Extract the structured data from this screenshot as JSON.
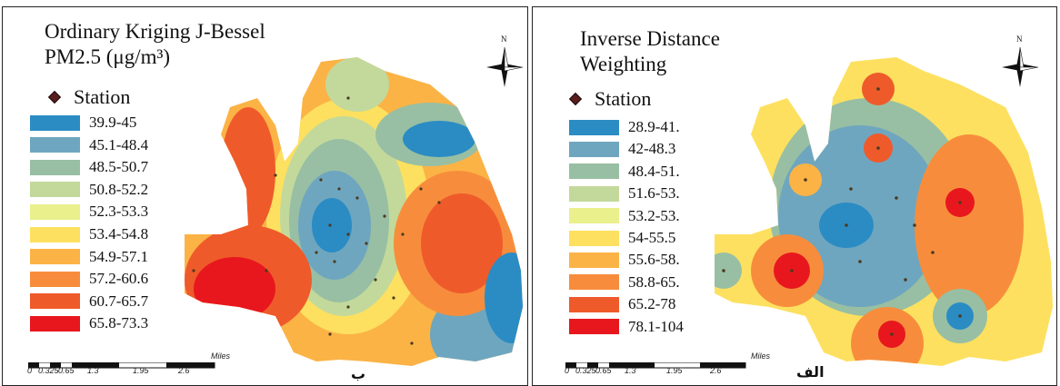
{
  "panels": {
    "left": {
      "title_line1": "Ordinary Kriging J-Bessel",
      "title_line2": "PM2.5 (μg/m³)",
      "station_label": "Station",
      "legend": [
        {
          "label": "39.9-45",
          "color": "#2b8cc4"
        },
        {
          "label": "45.1-48.4",
          "color": "#6fa6bf"
        },
        {
          "label": "48.5-50.7",
          "color": "#98bfa3"
        },
        {
          "label": "50.8-52.2",
          "color": "#c2d99b"
        },
        {
          "label": "52.3-53.3",
          "color": "#eaf08c"
        },
        {
          "label": "53.4-54.8",
          "color": "#fde05f"
        },
        {
          "label": "54.9-57.1",
          "color": "#fbb346"
        },
        {
          "label": "57.2-60.6",
          "color": "#f78d3c"
        },
        {
          "label": "60.7-65.7",
          "color": "#ef5a2b"
        },
        {
          "label": "65.8-73.3",
          "color": "#e8171e"
        }
      ],
      "scale": {
        "ticks": [
          "0",
          "0.325",
          "0.65",
          "1.3",
          "1.95",
          "2.6"
        ],
        "unit": "Miles"
      },
      "north_label": "N",
      "panel_letter": "ب"
    },
    "right": {
      "title_line1": "Inverse Distance",
      "title_line2": "Weighting",
      "station_label": "Station",
      "legend": [
        {
          "label": "28.9-41.",
          "color": "#2b8cc4"
        },
        {
          "label": "42-48.3",
          "color": "#6fa6bf"
        },
        {
          "label": "48.4-51.",
          "color": "#98bfa3"
        },
        {
          "label": "51.6-53.",
          "color": "#c2d99b"
        },
        {
          "label": "53.2-53.",
          "color": "#eaf08c"
        },
        {
          "label": "54-55.5",
          "color": "#fde05f"
        },
        {
          "label": "55.6-58.",
          "color": "#fbb346"
        },
        {
          "label": "58.8-65.",
          "color": "#f78d3c"
        },
        {
          "label": "65.2-78",
          "color": "#ef5a2b"
        },
        {
          "label": "78.1-104",
          "color": "#e8171e"
        }
      ],
      "scale": {
        "ticks": [
          "0",
          "0.325",
          "0.65",
          "1.3",
          "1.95",
          "2.6"
        ],
        "unit": "Miles"
      },
      "north_label": "N",
      "panel_letter": "الف"
    }
  }
}
